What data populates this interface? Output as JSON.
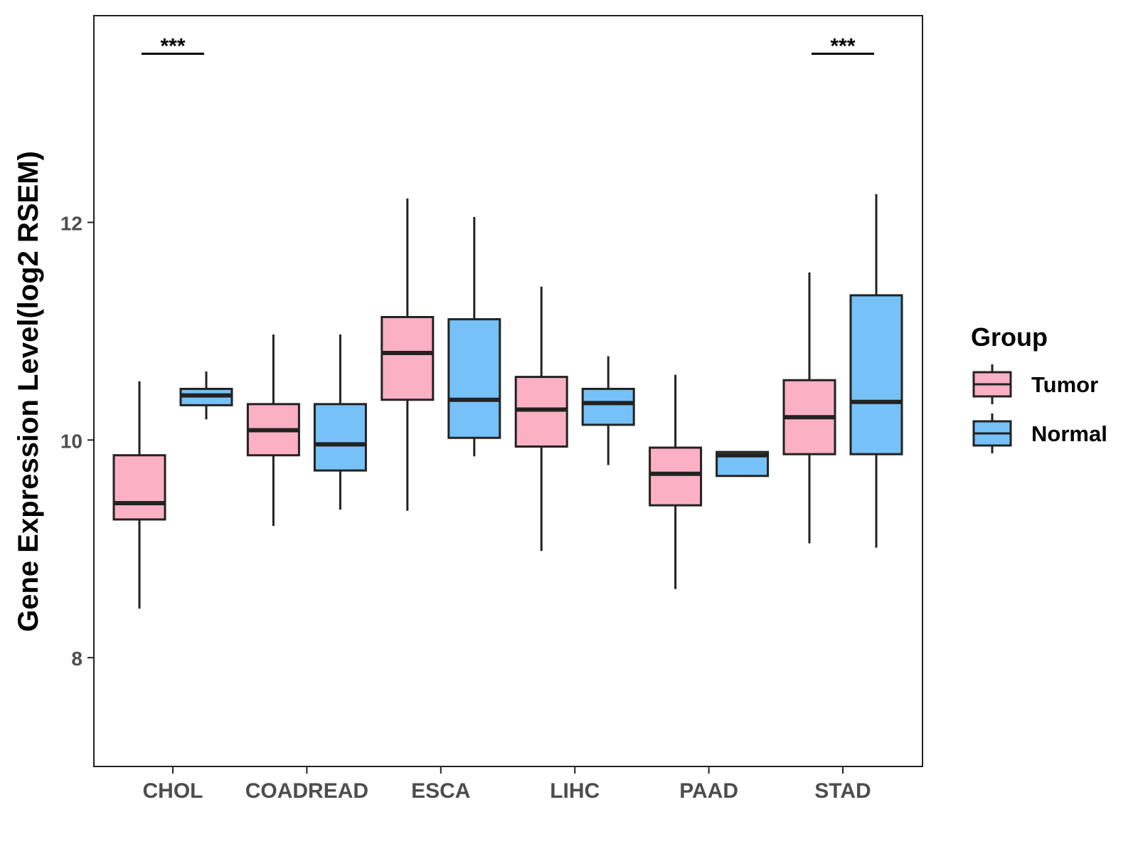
{
  "chart_data": {
    "type": "boxplot",
    "title": "",
    "xlabel": "",
    "ylabel": "Gene Expression Level(log2 RSEM)",
    "ylim": [
      7.0,
      13.9
    ],
    "yticks": [
      8,
      10,
      12
    ],
    "categories": [
      "CHOL",
      "COADREAD",
      "ESCA",
      "LIHC",
      "PAAD",
      "STAD"
    ],
    "legend": {
      "title": "Group",
      "position": "right",
      "entries": [
        "Tumor",
        "Normal"
      ]
    },
    "colors": {
      "Tumor": "#fbb1c3",
      "Normal": "#76c1f7",
      "outline": "#222222"
    },
    "series": [
      {
        "name": "Tumor",
        "boxes": [
          {
            "category": "CHOL",
            "min": 8.45,
            "q1": 9.27,
            "median": 9.42,
            "q3": 9.86,
            "max": 10.54
          },
          {
            "category": "COADREAD",
            "min": 9.21,
            "q1": 9.86,
            "median": 10.09,
            "q3": 10.33,
            "max": 10.97
          },
          {
            "category": "ESCA",
            "min": 9.35,
            "q1": 10.37,
            "median": 10.8,
            "q3": 11.13,
            "max": 12.22
          },
          {
            "category": "LIHC",
            "min": 8.98,
            "q1": 9.94,
            "median": 10.28,
            "q3": 10.58,
            "max": 11.41
          },
          {
            "category": "PAAD",
            "min": 8.63,
            "q1": 9.4,
            "median": 9.69,
            "q3": 9.93,
            "max": 10.6
          },
          {
            "category": "STAD",
            "min": 9.05,
            "q1": 9.87,
            "median": 10.21,
            "q3": 10.55,
            "max": 11.54
          }
        ]
      },
      {
        "name": "Normal",
        "boxes": [
          {
            "category": "CHOL",
            "min": 10.19,
            "q1": 10.32,
            "median": 10.41,
            "q3": 10.47,
            "max": 10.63
          },
          {
            "category": "COADREAD",
            "min": 9.36,
            "q1": 9.72,
            "median": 9.96,
            "q3": 10.33,
            "max": 10.97
          },
          {
            "category": "ESCA",
            "min": 9.85,
            "q1": 10.02,
            "median": 10.37,
            "q3": 11.11,
            "max": 12.05
          },
          {
            "category": "LIHC",
            "min": 9.77,
            "q1": 10.14,
            "median": 10.34,
            "q3": 10.47,
            "max": 10.77
          },
          {
            "category": "PAAD",
            "min": 9.67,
            "q1": 9.67,
            "median": 9.86,
            "q3": 9.89,
            "max": 9.89
          },
          {
            "category": "STAD",
            "min": 9.01,
            "q1": 9.87,
            "median": 10.35,
            "q3": 11.33,
            "max": 12.26
          }
        ]
      }
    ],
    "annotations": [
      {
        "category": "CHOL",
        "text": "***",
        "y": 13.55
      },
      {
        "category": "STAD",
        "text": "***",
        "y": 13.55
      }
    ]
  }
}
